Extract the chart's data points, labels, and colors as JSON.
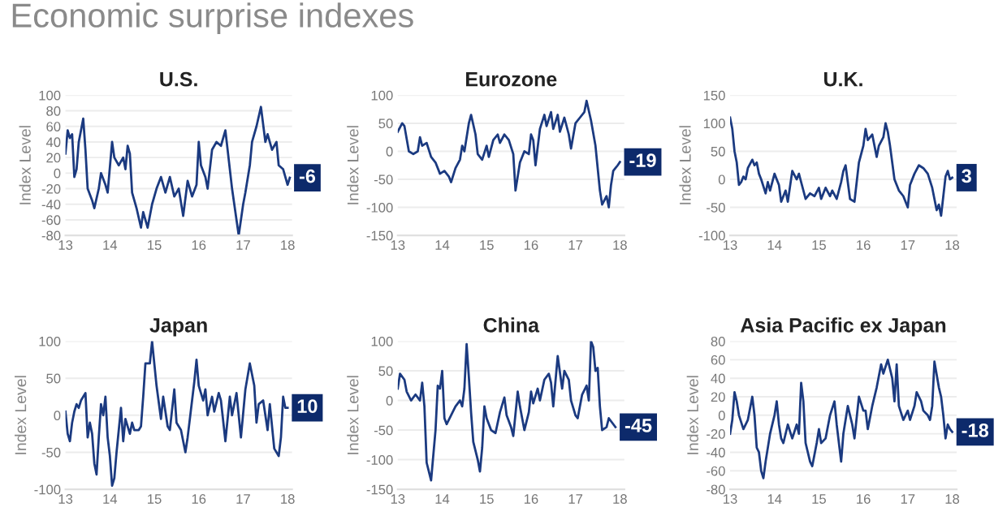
{
  "chart_data": [
    {
      "type": "other",
      "title": "Economic surprise indexes"
    },
    {
      "type": "line",
      "title": "U.S.",
      "ylabel": "Index Level",
      "color": "#1b3a80",
      "grid": "y",
      "xlim": [
        13,
        18.1
      ],
      "xticks": [
        13,
        14,
        15,
        16,
        17,
        18
      ],
      "ylim": [
        -80,
        100
      ],
      "yticks": [
        -80,
        -60,
        -40,
        -20,
        0,
        20,
        40,
        60,
        80,
        100
      ],
      "x": [
        13.0,
        13.05,
        13.1,
        13.15,
        13.2,
        13.25,
        13.3,
        13.4,
        13.45,
        13.5,
        13.6,
        13.65,
        13.75,
        13.8,
        13.9,
        13.95,
        14.05,
        14.1,
        14.2,
        14.3,
        14.35,
        14.4,
        14.45,
        14.5,
        14.6,
        14.7,
        14.75,
        14.85,
        14.95,
        15.05,
        15.15,
        15.25,
        15.35,
        15.45,
        15.55,
        15.65,
        15.75,
        15.85,
        15.95,
        16.0,
        16.05,
        16.15,
        16.2,
        16.3,
        16.4,
        16.5,
        16.6,
        16.65,
        16.75,
        16.85,
        16.9,
        17.0,
        17.05,
        17.15,
        17.2,
        17.3,
        17.4,
        17.5,
        17.55,
        17.65,
        17.75,
        17.8,
        17.9,
        18.0,
        18.05
      ],
      "values": [
        25,
        55,
        45,
        50,
        -5,
        5,
        40,
        70,
        30,
        -20,
        -35,
        -45,
        -20,
        0,
        -15,
        -25,
        40,
        20,
        10,
        20,
        5,
        35,
        25,
        -25,
        -45,
        -70,
        -50,
        -70,
        -40,
        -20,
        -5,
        -25,
        -5,
        -30,
        -20,
        -55,
        -10,
        -30,
        -15,
        40,
        10,
        -5,
        -20,
        30,
        40,
        35,
        55,
        30,
        -20,
        -60,
        -80,
        -40,
        -25,
        10,
        40,
        60,
        85,
        40,
        50,
        30,
        40,
        10,
        5,
        -15,
        -6
      ],
      "annotations": [
        {
          "text": "-6",
          "x": 18.05,
          "y": -6
        }
      ]
    },
    {
      "type": "line",
      "title": "Eurozone",
      "ylabel": "Index Level",
      "color": "#1b3a80",
      "grid": "y",
      "xlim": [
        13,
        18.1
      ],
      "xticks": [
        13,
        14,
        15,
        16,
        17,
        18
      ],
      "ylim": [
        -150,
        100
      ],
      "yticks": [
        -150,
        -100,
        -50,
        0,
        50,
        100
      ],
      "x": [
        13.0,
        13.1,
        13.15,
        13.25,
        13.35,
        13.45,
        13.5,
        13.55,
        13.65,
        13.75,
        13.85,
        13.95,
        14.05,
        14.15,
        14.2,
        14.3,
        14.4,
        14.45,
        14.5,
        14.6,
        14.65,
        14.75,
        14.8,
        14.9,
        15.0,
        15.05,
        15.15,
        15.25,
        15.3,
        15.4,
        15.5,
        15.6,
        15.65,
        15.75,
        15.85,
        15.95,
        16.0,
        16.05,
        16.1,
        16.2,
        16.3,
        16.35,
        16.45,
        16.5,
        16.6,
        16.65,
        16.75,
        16.85,
        16.9,
        17.0,
        17.1,
        17.2,
        17.25,
        17.35,
        17.45,
        17.55,
        17.6,
        17.7,
        17.75,
        17.8,
        17.85,
        17.9,
        17.95,
        18.0
      ],
      "values": [
        35,
        50,
        45,
        0,
        -5,
        0,
        25,
        10,
        15,
        -10,
        -20,
        -40,
        -35,
        -45,
        -55,
        -30,
        -15,
        10,
        0,
        50,
        65,
        30,
        -5,
        -15,
        10,
        -10,
        20,
        30,
        15,
        30,
        20,
        -5,
        -70,
        -20,
        0,
        -5,
        30,
        20,
        -25,
        40,
        65,
        45,
        70,
        40,
        65,
        35,
        60,
        30,
        5,
        50,
        60,
        70,
        90,
        55,
        10,
        -70,
        -95,
        -80,
        -100,
        -60,
        -35,
        -30,
        -25,
        -19
      ],
      "annotations": [
        {
          "text": "-19",
          "x": 18.0,
          "y": -19
        }
      ]
    },
    {
      "type": "line",
      "title": "U.K.",
      "ylabel": "Index Level",
      "color": "#1b3a80",
      "grid": "y",
      "xlim": [
        13,
        18.1
      ],
      "xticks": [
        13,
        14,
        15,
        16,
        17,
        18
      ],
      "ylim": [
        -100,
        150
      ],
      "yticks": [
        -100,
        -50,
        0,
        50,
        100,
        150
      ],
      "x": [
        13.0,
        13.05,
        13.1,
        13.15,
        13.2,
        13.25,
        13.3,
        13.35,
        13.4,
        13.5,
        13.55,
        13.6,
        13.65,
        13.7,
        13.8,
        13.85,
        13.9,
        14.0,
        14.1,
        14.15,
        14.25,
        14.3,
        14.4,
        14.5,
        14.55,
        14.6,
        14.7,
        14.8,
        14.9,
        15.0,
        15.05,
        15.15,
        15.25,
        15.3,
        15.4,
        15.5,
        15.55,
        15.6,
        15.7,
        15.8,
        15.9,
        16.0,
        16.05,
        16.1,
        16.2,
        16.3,
        16.35,
        16.45,
        16.5,
        16.55,
        16.6,
        16.7,
        16.8,
        16.9,
        17.0,
        17.05,
        17.15,
        17.25,
        17.35,
        17.45,
        17.55,
        17.65,
        17.7,
        17.75,
        17.8,
        17.85,
        17.9,
        17.95,
        18.0
      ],
      "values": [
        110,
        90,
        50,
        30,
        -10,
        -5,
        5,
        0,
        20,
        35,
        25,
        30,
        10,
        0,
        -25,
        -5,
        -20,
        10,
        -10,
        -40,
        -20,
        -40,
        15,
        0,
        10,
        -5,
        -35,
        -25,
        -30,
        -15,
        -35,
        -15,
        -30,
        -20,
        -35,
        -5,
        15,
        25,
        -35,
        -40,
        30,
        60,
        90,
        70,
        80,
        40,
        60,
        75,
        100,
        85,
        60,
        0,
        -20,
        -30,
        -50,
        -10,
        10,
        25,
        20,
        10,
        -15,
        -55,
        -45,
        -65,
        -30,
        5,
        15,
        0,
        3
      ],
      "annotations": [
        {
          "text": "3",
          "x": 18.0,
          "y": 3
        }
      ]
    },
    {
      "type": "line",
      "title": "Japan",
      "ylabel": "Index Level",
      "color": "#1b3a80",
      "grid": "y",
      "xlim": [
        13,
        18.1
      ],
      "xticks": [
        13,
        14,
        15,
        16,
        17,
        18
      ],
      "ylim": [
        -100,
        100
      ],
      "yticks": [
        -100,
        -50,
        0,
        50,
        100
      ],
      "x": [
        13.0,
        13.05,
        13.1,
        13.15,
        13.2,
        13.25,
        13.3,
        13.35,
        13.45,
        13.5,
        13.55,
        13.6,
        13.65,
        13.7,
        13.75,
        13.8,
        13.85,
        13.9,
        13.95,
        14.0,
        14.05,
        14.1,
        14.15,
        14.25,
        14.3,
        14.35,
        14.45,
        14.5,
        14.55,
        14.65,
        14.7,
        14.75,
        14.8,
        14.9,
        14.95,
        15.05,
        15.15,
        15.2,
        15.3,
        15.35,
        15.45,
        15.5,
        15.6,
        15.7,
        15.75,
        15.9,
        15.95,
        16.0,
        16.1,
        16.15,
        16.2,
        16.3,
        16.35,
        16.45,
        16.5,
        16.6,
        16.7,
        16.75,
        16.85,
        16.95,
        17.05,
        17.15,
        17.25,
        17.3,
        17.35,
        17.45,
        17.55,
        17.6,
        17.7,
        17.8,
        17.85,
        17.9,
        17.95,
        18.0
      ],
      "values": [
        5,
        -25,
        -35,
        -10,
        5,
        15,
        10,
        20,
        30,
        -30,
        -10,
        -25,
        -65,
        -80,
        -30,
        15,
        0,
        25,
        -30,
        -55,
        -95,
        -85,
        -50,
        10,
        -35,
        -5,
        -25,
        -10,
        -20,
        -20,
        -15,
        25,
        70,
        70,
        100,
        40,
        -5,
        25,
        -15,
        -20,
        35,
        -10,
        -20,
        -50,
        -30,
        45,
        75,
        40,
        20,
        35,
        0,
        25,
        5,
        30,
        20,
        -35,
        25,
        0,
        30,
        -30,
        35,
        70,
        40,
        -10,
        15,
        20,
        -20,
        15,
        -45,
        -55,
        -30,
        25,
        10,
        10
      ],
      "annotations": [
        {
          "text": "10",
          "x": 18.0,
          "y": 10
        }
      ]
    },
    {
      "type": "line",
      "title": "China",
      "ylabel": "Index Level",
      "color": "#1b3a80",
      "grid": "y",
      "xlim": [
        13,
        18.1
      ],
      "xticks": [
        13,
        14,
        15,
        16,
        17,
        18
      ],
      "ylim": [
        -150,
        100
      ],
      "yticks": [
        -150,
        -100,
        -50,
        0,
        50,
        100
      ],
      "x": [
        13.0,
        13.05,
        13.15,
        13.2,
        13.3,
        13.4,
        13.5,
        13.55,
        13.6,
        13.65,
        13.7,
        13.75,
        13.85,
        13.9,
        13.95,
        14.0,
        14.05,
        14.1,
        14.2,
        14.3,
        14.4,
        14.45,
        14.5,
        14.55,
        14.6,
        14.65,
        14.7,
        14.8,
        14.85,
        14.9,
        14.95,
        15.0,
        15.1,
        15.2,
        15.3,
        15.4,
        15.45,
        15.55,
        15.6,
        15.7,
        15.75,
        15.85,
        15.95,
        16.0,
        16.05,
        16.15,
        16.2,
        16.3,
        16.4,
        16.45,
        16.5,
        16.6,
        16.7,
        16.75,
        16.85,
        16.9,
        17.0,
        17.05,
        17.15,
        17.25,
        17.3,
        17.35,
        17.4,
        17.45,
        17.5,
        17.55,
        17.6,
        17.7,
        17.75,
        17.85,
        17.9
      ],
      "values": [
        20,
        45,
        35,
        15,
        0,
        10,
        0,
        30,
        -10,
        -105,
        -120,
        -135,
        -50,
        25,
        20,
        50,
        -30,
        -40,
        -25,
        -10,
        0,
        -10,
        20,
        95,
        40,
        -20,
        -70,
        -100,
        -120,
        -80,
        -10,
        -30,
        -50,
        -55,
        -20,
        5,
        -25,
        -45,
        -60,
        15,
        -10,
        -50,
        -20,
        15,
        -5,
        20,
        0,
        35,
        45,
        30,
        -10,
        75,
        20,
        50,
        35,
        0,
        -25,
        -30,
        10,
        25,
        0,
        100,
        90,
        50,
        55,
        -10,
        -50,
        -45,
        -30,
        -40,
        -45
      ],
      "annotations": [
        {
          "text": "-45",
          "x": 17.9,
          "y": -45
        }
      ]
    },
    {
      "type": "line",
      "title": "Asia Pacific ex Japan",
      "ylabel": "Index Level",
      "color": "#1b3a80",
      "grid": "y",
      "xlim": [
        13,
        18.1
      ],
      "xticks": [
        13,
        14,
        15,
        16,
        17,
        18
      ],
      "ylim": [
        -80,
        80
      ],
      "yticks": [
        -80,
        -60,
        -40,
        -20,
        0,
        20,
        40,
        60,
        80
      ],
      "x": [
        13.0,
        13.05,
        13.1,
        13.15,
        13.2,
        13.3,
        13.4,
        13.5,
        13.55,
        13.6,
        13.65,
        13.7,
        13.75,
        13.8,
        13.9,
        14.0,
        14.05,
        14.1,
        14.15,
        14.2,
        14.3,
        14.4,
        14.5,
        14.55,
        14.6,
        14.65,
        14.7,
        14.8,
        14.85,
        14.95,
        15.0,
        15.05,
        15.15,
        15.25,
        15.35,
        15.4,
        15.45,
        15.5,
        15.55,
        15.65,
        15.75,
        15.8,
        15.9,
        16.0,
        16.05,
        16.1,
        16.2,
        16.3,
        16.4,
        16.45,
        16.55,
        16.65,
        16.7,
        16.75,
        16.8,
        16.9,
        17.0,
        17.05,
        17.15,
        17.2,
        17.3,
        17.35,
        17.45,
        17.5,
        17.55,
        17.6,
        17.7,
        17.75,
        17.8,
        17.85,
        17.9,
        17.95,
        18.0
      ],
      "values": [
        -20,
        -5,
        25,
        15,
        0,
        -15,
        -5,
        20,
        0,
        -35,
        -40,
        -60,
        -68,
        -50,
        -20,
        0,
        15,
        -10,
        -25,
        -30,
        -10,
        -25,
        -10,
        -20,
        35,
        15,
        -30,
        -50,
        -55,
        -30,
        -15,
        -30,
        -25,
        0,
        15,
        -10,
        -30,
        -50,
        -20,
        10,
        -10,
        -25,
        20,
        5,
        5,
        -15,
        10,
        30,
        55,
        45,
        60,
        40,
        15,
        55,
        10,
        -5,
        5,
        -5,
        10,
        25,
        15,
        5,
        0,
        -5,
        10,
        58,
        30,
        20,
        0,
        -25,
        -10,
        -15,
        -18
      ],
      "annotations": [
        {
          "text": "-18",
          "x": 18.0,
          "y": -18
        }
      ]
    }
  ]
}
